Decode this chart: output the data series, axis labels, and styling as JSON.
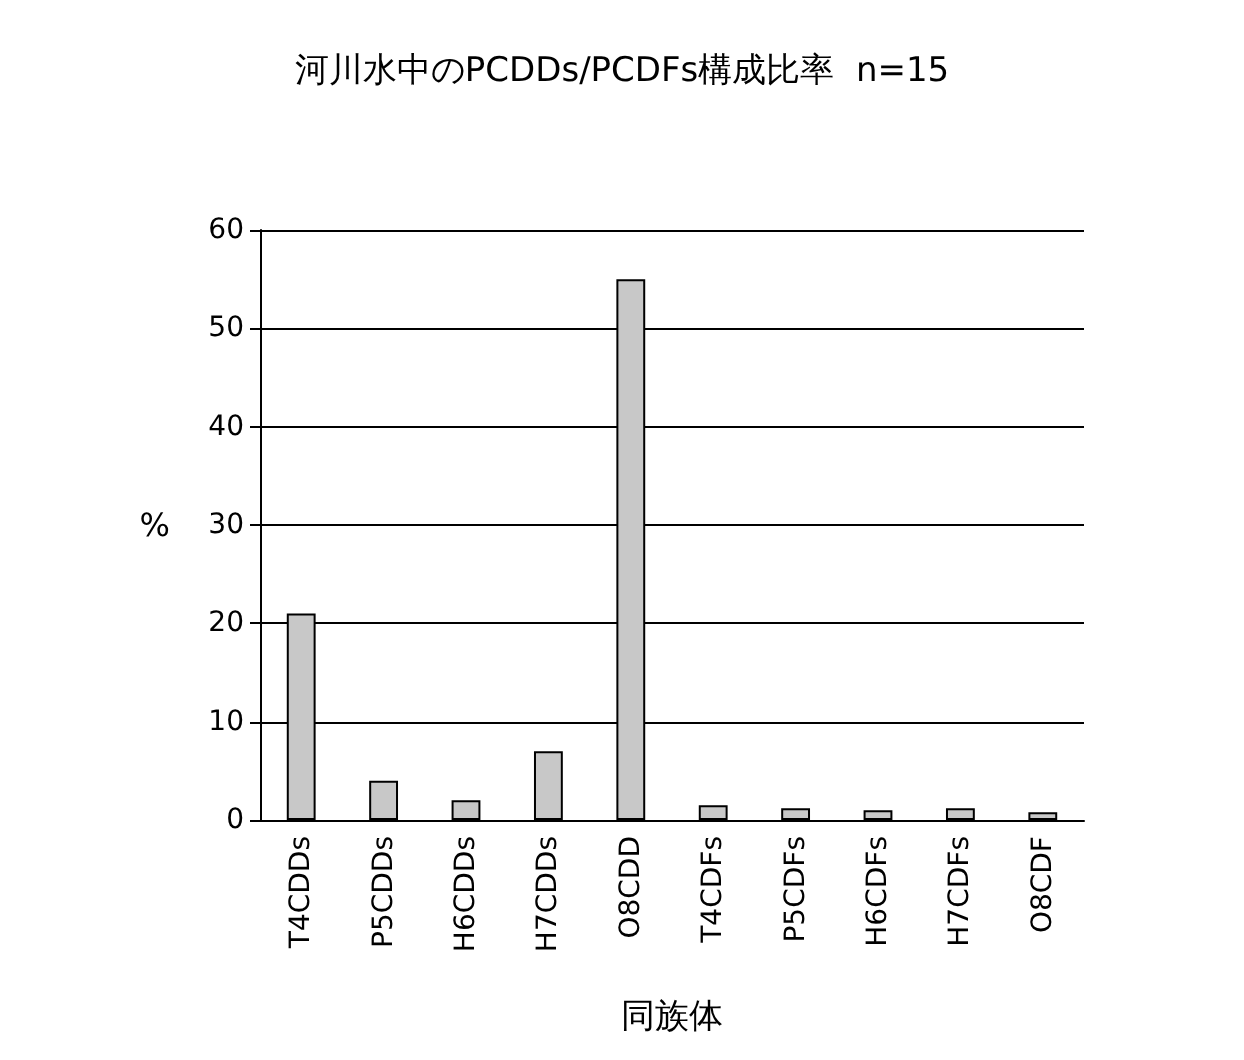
{
  "chart_data": {
    "type": "bar",
    "title": "河川水中のPCDDs/PCDFs構成比率  n=15",
    "xlabel": "同族体",
    "ylabel": "%",
    "categories": [
      "T4CDDs",
      "P5CDDs",
      "H6CDDs",
      "H7CDDs",
      "O8CDD",
      "T4CDFs",
      "P5CDFs",
      "H6CDFs",
      "H7CDFs",
      "O8CDF"
    ],
    "values": [
      21,
      4,
      2,
      7,
      55,
      1.5,
      1.2,
      1,
      1.2,
      0.8
    ],
    "color": "#c8c8c8",
    "ylim": [
      0,
      60
    ],
    "yticks": [
      0,
      10,
      20,
      30,
      40,
      50,
      60
    ],
    "grid": "y"
  }
}
